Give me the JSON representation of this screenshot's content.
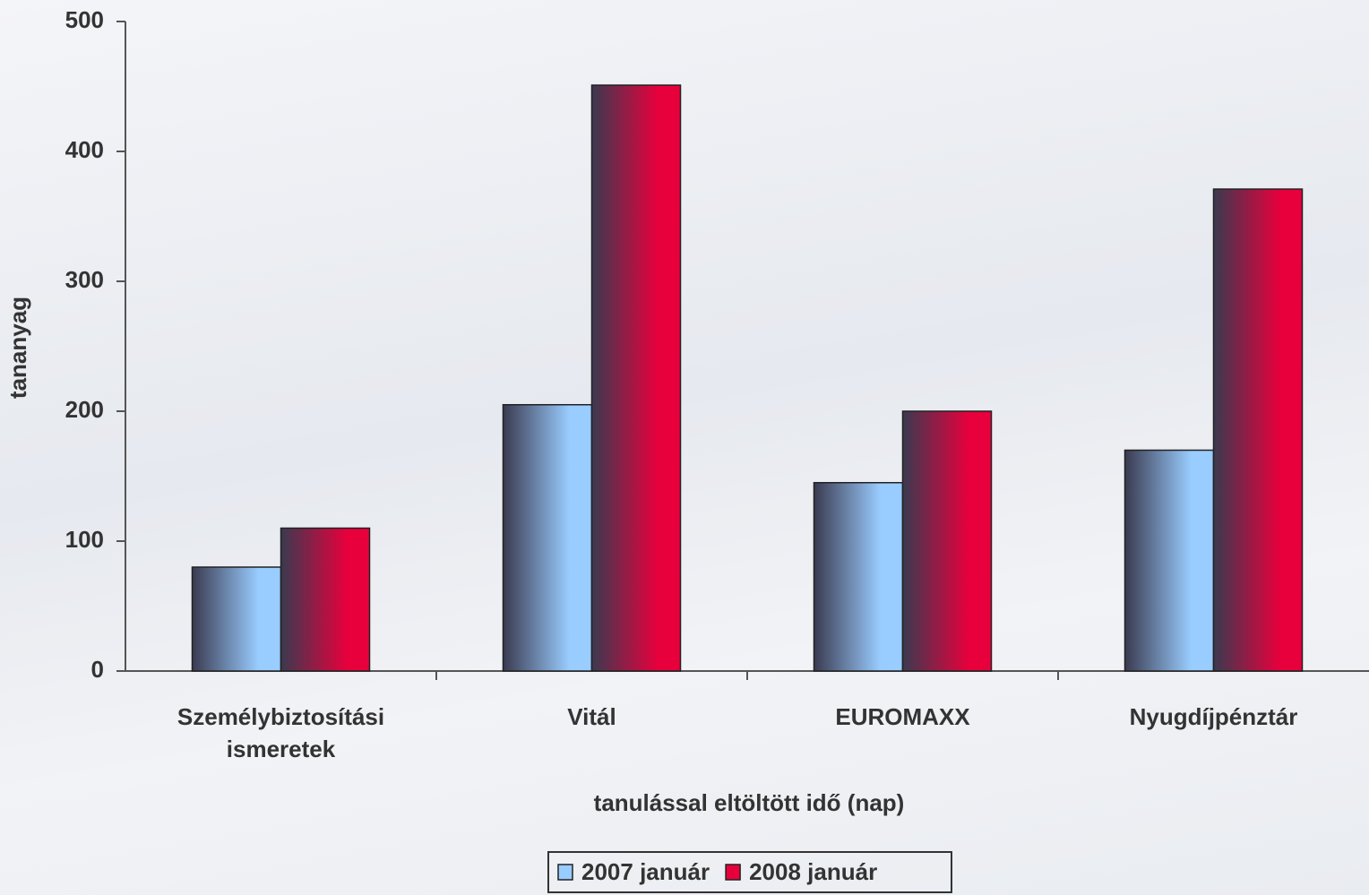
{
  "chart_data": {
    "type": "bar",
    "x_label": "tanulással eltöltött idő (nap)",
    "y_label": "tananyag",
    "categories": [
      "Személybiztosítási ismeretek",
      "Vitál",
      "EUROMAXX",
      "Nyugdíjpénztár"
    ],
    "series": [
      {
        "name": "2007 január",
        "color": "#99ccff",
        "values": [
          80,
          205,
          145,
          170
        ]
      },
      {
        "name": "2008 január",
        "color": "#e8003c",
        "values": [
          110,
          451,
          200,
          371
        ]
      }
    ],
    "ylim": [
      0,
      500
    ],
    "yticks": [
      0,
      100,
      200,
      300,
      400,
      500
    ],
    "grid": false,
    "legend": "bottom"
  }
}
